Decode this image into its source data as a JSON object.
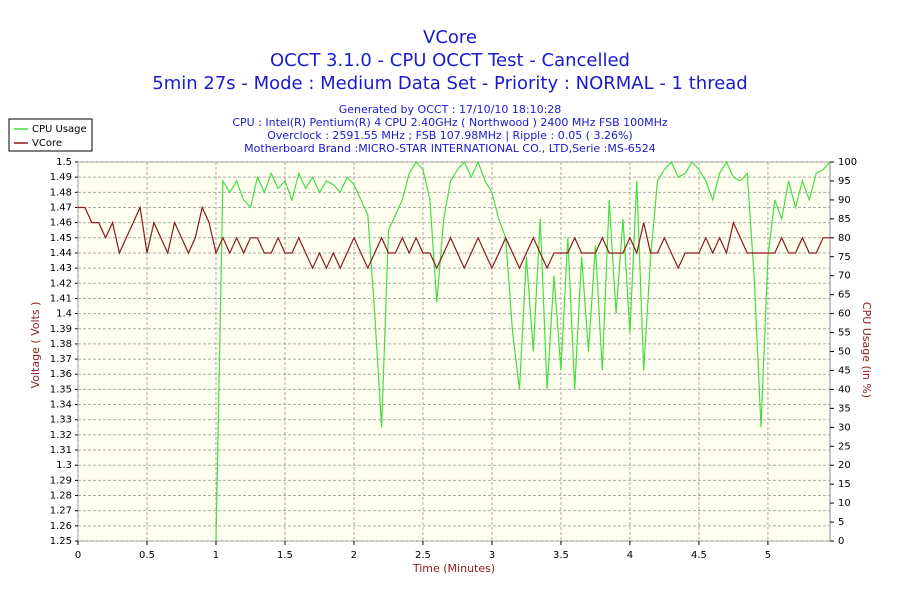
{
  "chart_data": {
    "type": "line",
    "title": "VCore",
    "subtitle": [
      "OCCT 3.1.0 - CPU OCCT Test - Cancelled",
      "5min 27s - Mode : Medium Data Set - Priority : NORMAL - 1 thread"
    ],
    "info": [
      "Generated by OCCT : 17/10/10 18:10:28",
      "CPU : Intel(R) Pentium(R) 4 CPU 2.40GHz ( Northwood ) 2400 MHz FSB 100MHz",
      "Overclock : 2591.55 MHz ; FSB 107.98MHz | Ripple : 0.05 ( 3.26%)",
      "Motherboard Brand :MICRO-STAR INTERNATIONAL CO., LTD,Serie :MS-6524"
    ],
    "xlabel": "Time (Minutes)",
    "ylabel": "Voltage ( Volts )",
    "y2label": "CPU Usage (in %)",
    "legend": "top-left",
    "grid": true,
    "x": [
      0,
      0.05,
      0.1,
      0.15,
      0.2,
      0.25,
      0.3,
      0.35,
      0.4,
      0.45,
      0.5,
      0.55,
      0.6,
      0.65,
      0.7,
      0.75,
      0.8,
      0.85,
      0.9,
      0.95,
      1,
      1.05,
      1.1,
      1.15,
      1.2,
      1.25,
      1.3,
      1.35,
      1.4,
      1.45,
      1.5,
      1.55,
      1.6,
      1.65,
      1.7,
      1.75,
      1.8,
      1.85,
      1.9,
      1.95,
      2,
      2.05,
      2.1,
      2.15,
      2.2,
      2.25,
      2.3,
      2.35,
      2.4,
      2.45,
      2.5,
      2.55,
      2.6,
      2.65,
      2.7,
      2.75,
      2.8,
      2.85,
      2.9,
      2.95,
      3,
      3.05,
      3.1,
      3.15,
      3.2,
      3.25,
      3.3,
      3.35,
      3.4,
      3.45,
      3.5,
      3.55,
      3.6,
      3.65,
      3.7,
      3.75,
      3.8,
      3.85,
      3.9,
      3.95,
      4,
      4.05,
      4.1,
      4.15,
      4.2,
      4.25,
      4.3,
      4.35,
      4.4,
      4.45,
      4.5,
      4.55,
      4.6,
      4.65,
      4.7,
      4.75,
      4.8,
      4.85,
      4.9,
      4.95,
      5,
      5.05,
      5.1,
      5.15,
      5.2,
      5.25,
      5.3,
      5.35,
      5.4,
      5.45
    ],
    "series": [
      {
        "name": "CPU Usage",
        "color": "#44dd44",
        "axis": "y2",
        "values": [
          null,
          null,
          null,
          null,
          null,
          null,
          null,
          null,
          null,
          null,
          null,
          null,
          null,
          null,
          null,
          null,
          null,
          null,
          null,
          null,
          0,
          95,
          92,
          95,
          90,
          88,
          96,
          92,
          97,
          93,
          95,
          90,
          97,
          93,
          96,
          92,
          95,
          94,
          92,
          96,
          94,
          90,
          86,
          60,
          30,
          82,
          86,
          90,
          97,
          100,
          98,
          90,
          63,
          85,
          95,
          98,
          100,
          96,
          100,
          95,
          92,
          85,
          80,
          55,
          40,
          75,
          50,
          85,
          40,
          70,
          45,
          80,
          40,
          75,
          50,
          78,
          45,
          90,
          60,
          85,
          55,
          95,
          45,
          75,
          95,
          98,
          100,
          96,
          97,
          100,
          98,
          95,
          90,
          97,
          100,
          96,
          95,
          97,
          70,
          30,
          75,
          90,
          85,
          95,
          88,
          95,
          90,
          97,
          98,
          100
        ]
      },
      {
        "name": "VCore",
        "color": "#8b1a1a",
        "values": [
          1.47,
          1.47,
          1.46,
          1.46,
          1.45,
          1.46,
          1.44,
          1.45,
          1.46,
          1.47,
          1.44,
          1.46,
          1.45,
          1.44,
          1.46,
          1.45,
          1.44,
          1.45,
          1.47,
          1.46,
          1.44,
          1.45,
          1.44,
          1.45,
          1.44,
          1.45,
          1.45,
          1.44,
          1.44,
          1.45,
          1.44,
          1.44,
          1.45,
          1.44,
          1.43,
          1.44,
          1.43,
          1.44,
          1.43,
          1.44,
          1.45,
          1.44,
          1.43,
          1.44,
          1.45,
          1.44,
          1.44,
          1.45,
          1.44,
          1.45,
          1.44,
          1.44,
          1.43,
          1.44,
          1.45,
          1.44,
          1.43,
          1.44,
          1.45,
          1.44,
          1.43,
          1.44,
          1.45,
          1.44,
          1.43,
          1.44,
          1.45,
          1.44,
          1.43,
          1.44,
          1.44,
          1.44,
          1.45,
          1.44,
          1.44,
          1.44,
          1.45,
          1.44,
          1.44,
          1.44,
          1.45,
          1.44,
          1.46,
          1.44,
          1.44,
          1.45,
          1.44,
          1.43,
          1.44,
          1.44,
          1.44,
          1.45,
          1.44,
          1.45,
          1.44,
          1.46,
          1.45,
          1.44,
          1.44,
          1.44,
          1.44,
          1.44,
          1.45,
          1.44,
          1.44,
          1.45,
          1.44,
          1.44,
          1.45,
          1.45
        ]
      }
    ],
    "xlim": [
      0,
      5.45
    ],
    "xticks": [
      0,
      0.5,
      1,
      1.5,
      2,
      2.5,
      3,
      3.5,
      4,
      4.5,
      5
    ],
    "ylim": [
      1.25,
      1.5
    ],
    "yticks": [
      1.5,
      1.49,
      1.48,
      1.47,
      1.46,
      1.45,
      1.44,
      1.43,
      1.42,
      1.41,
      1.4,
      1.39,
      1.38,
      1.37,
      1.36,
      1.35,
      1.34,
      1.33,
      1.32,
      1.31,
      1.3,
      1.29,
      1.28,
      1.27,
      1.26,
      1.25
    ],
    "y2lim": [
      0,
      100
    ],
    "y2ticks": [
      0,
      5,
      10,
      15,
      20,
      25,
      30,
      35,
      40,
      45,
      50,
      55,
      60,
      65,
      70,
      75,
      80,
      85,
      90,
      95,
      100
    ]
  }
}
